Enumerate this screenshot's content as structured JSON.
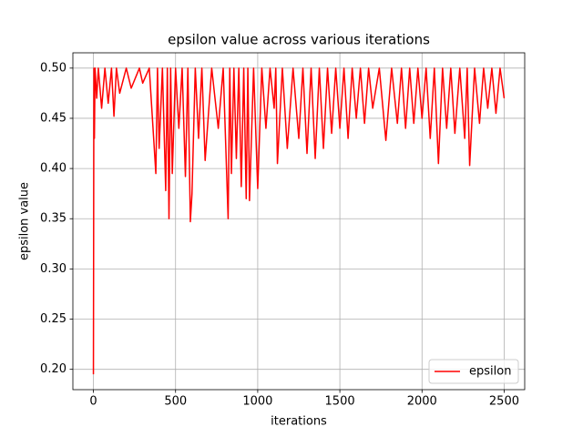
{
  "chart_data": {
    "type": "line",
    "title": "epsilon value across various iterations",
    "x_label": "iterations",
    "y_label": "epsilon value",
    "x": [
      0,
      3,
      6,
      10,
      20,
      30,
      50,
      70,
      90,
      110,
      125,
      140,
      160,
      200,
      230,
      280,
      300,
      340,
      380,
      390,
      400,
      420,
      440,
      450,
      460,
      470,
      480,
      500,
      520,
      540,
      560,
      575,
      590,
      600,
      620,
      640,
      660,
      680,
      720,
      760,
      790,
      820,
      830,
      840,
      855,
      870,
      885,
      900,
      915,
      930,
      940,
      950,
      975,
      1000,
      1025,
      1050,
      1075,
      1100,
      1110,
      1120,
      1150,
      1180,
      1215,
      1250,
      1275,
      1300,
      1325,
      1350,
      1375,
      1400,
      1425,
      1450,
      1475,
      1500,
      1525,
      1550,
      1575,
      1600,
      1625,
      1650,
      1675,
      1700,
      1740,
      1780,
      1815,
      1850,
      1875,
      1900,
      1925,
      1950,
      1975,
      2000,
      2025,
      2050,
      2075,
      2100,
      2125,
      2150,
      2175,
      2200,
      2230,
      2260,
      2275,
      2290,
      2320,
      2350,
      2375,
      2400,
      2425,
      2450,
      2475,
      2500
    ],
    "series": [
      {
        "name": "epsilon",
        "color": "#ff0000",
        "values": [
          0.195,
          0.5,
          0.43,
          0.5,
          0.47,
          0.5,
          0.46,
          0.5,
          0.465,
          0.5,
          0.452,
          0.5,
          0.475,
          0.5,
          0.48,
          0.5,
          0.485,
          0.5,
          0.395,
          0.5,
          0.42,
          0.5,
          0.378,
          0.5,
          0.35,
          0.5,
          0.395,
          0.5,
          0.44,
          0.5,
          0.392,
          0.5,
          0.347,
          0.375,
          0.5,
          0.43,
          0.5,
          0.408,
          0.5,
          0.44,
          0.5,
          0.35,
          0.5,
          0.395,
          0.5,
          0.41,
          0.5,
          0.382,
          0.5,
          0.37,
          0.5,
          0.368,
          0.5,
          0.38,
          0.5,
          0.44,
          0.5,
          0.46,
          0.5,
          0.405,
          0.5,
          0.42,
          0.5,
          0.43,
          0.5,
          0.415,
          0.5,
          0.41,
          0.5,
          0.42,
          0.5,
          0.435,
          0.5,
          0.44,
          0.5,
          0.43,
          0.5,
          0.45,
          0.5,
          0.445,
          0.5,
          0.46,
          0.5,
          0.428,
          0.5,
          0.445,
          0.5,
          0.44,
          0.5,
          0.445,
          0.5,
          0.45,
          0.5,
          0.43,
          0.5,
          0.405,
          0.5,
          0.44,
          0.5,
          0.435,
          0.5,
          0.43,
          0.5,
          0.403,
          0.5,
          0.445,
          0.5,
          0.46,
          0.5,
          0.455,
          0.5,
          0.47
        ]
      }
    ],
    "xlim": [
      -125,
      2625
    ],
    "ylim": [
      0.17975,
      0.51525
    ],
    "xticks": [
      0,
      500,
      1000,
      1500,
      2000,
      2500
    ],
    "yticks": [
      {
        "value": 0.2,
        "label": "0.20"
      },
      0.25,
      {
        "value": 0.3,
        "label": "0.30"
      },
      0.35,
      {
        "value": 0.4,
        "label": "0.40"
      },
      0.45,
      {
        "value": 0.5,
        "label": "0.50"
      }
    ],
    "grid": true,
    "legend": "lower right"
  }
}
